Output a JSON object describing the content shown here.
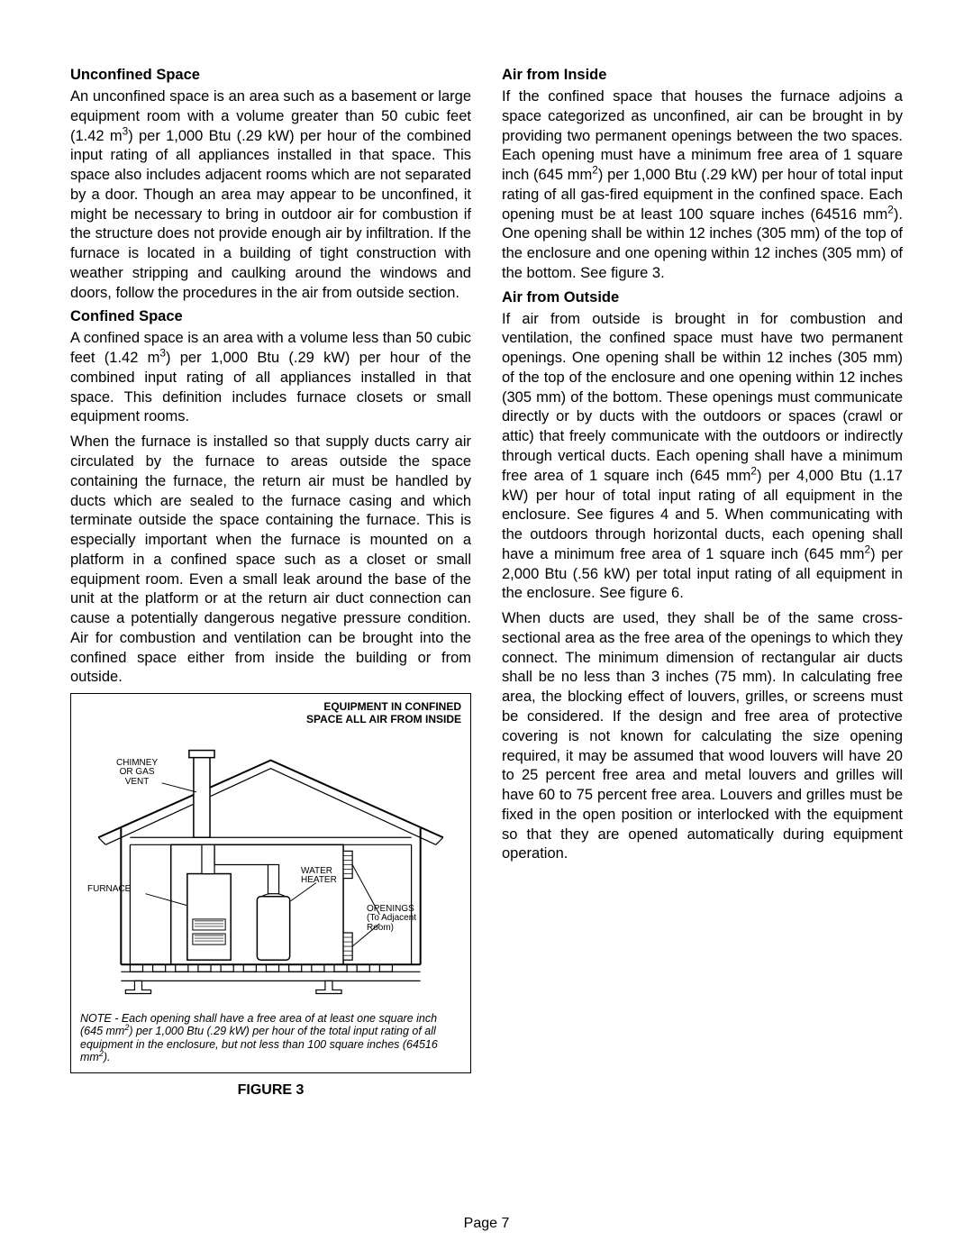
{
  "page_number": "Page 7",
  "left": {
    "h1": "Unconfined Space",
    "p1": "An unconfined space is an area such as a basement or large equipment room with a volume greater than 50 cubic feet (1.42 m³) per 1,000 Btu (.29 kW) per hour of the combined input rating of all appliances installed in that space. This space also includes adjacent rooms which are not separated by a door. Though an area may appear to be unconfined, it might be necessary to bring in outdoor air for combustion if the structure does not provide enough air by infiltration. If the furnace is located in a building of tight construction with weather stripping and caulking around the windows and doors, follow the procedures in the air from outside section.",
    "h2": "Confined Space",
    "p2": "A confined space is an area with a volume less than 50 cubic feet (1.42 m³) per 1,000 Btu (.29 kW) per hour of the combined input rating of all appliances installed in that space. This definition includes furnace closets or small equipment rooms.",
    "p3": "When the furnace is installed so that supply ducts carry air circulated by the furnace to areas outside the space containing the furnace, the return air must be handled by ducts which are sealed to the furnace casing and which terminate outside the space containing the furnace. This is especially important when the furnace is mounted on a platform in a confined space such as a closet or small equipment room. Even a small leak around the base of the unit at the platform or at the return air duct connection can cause a potentially dangerous negative pressure condition. Air for combustion and ventilation can be brought into the confined space either from inside the building or from outside."
  },
  "right": {
    "h1": "Air from Inside",
    "p1": "If the confined space that houses the furnace adjoins a space categorized as unconfined, air can be brought in by providing two permanent openings between the two spaces. Each opening must have a minimum free area of 1 square inch (645 mm²) per 1,000 Btu (.29 kW) per hour of total input rating of all gas-fired equipment in the confined space. Each opening must be at least 100 square inches (64516 mm²). One opening shall be within 12 inches (305 mm) of the top of the enclosure and one opening within 12 inches (305 mm) of the bottom. See figure 3.",
    "h2": "Air from Outside",
    "p2": "If air from outside is brought in for combustion and ventilation, the confined space must have two permanent openings. One opening shall be within 12 inches (305 mm) of the top of the enclosure and one opening within 12 inches (305 mm) of the bottom. These openings must communicate directly or by ducts with the outdoors or spaces (crawl or attic) that freely communicate with the outdoors or indirectly through vertical ducts. Each opening shall have a minimum free area of 1 square inch (645 mm²) per 4,000 Btu (1.17 kW) per hour of total input rating of all equipment in the enclosure. See figures 4 and 5. When communicating with the outdoors through horizontal ducts, each opening shall have a minimum free area of 1 square inch (645 mm²) per 2,000 Btu (.56 kW) per total input rating of all equipment in the enclosure. See figure 6.",
    "p3": "When ducts are used, they shall be of the same cross-sectional area as the free area of the openings to which they connect. The minimum dimension of rectangular air ducts shall be no less than 3 inches (75 mm). In calculating free area, the blocking effect of louvers, grilles, or screens must be considered. If the design and free area of protective covering is not known for calculating the size opening required, it may be assumed that wood louvers will have 20 to 25 percent free area and metal louvers and grilles will have 60 to 75 percent free area. Louvers and grilles must be fixed in the open position or interlocked with the equipment so that they are opened automatically during equipment operation."
  },
  "figure": {
    "title_l1": "EQUIPMENT IN CONFINED",
    "title_l2": "SPACE ALL AIR FROM INSIDE",
    "label_chimney": "CHIMNEY\nOR GAS\nVENT",
    "label_furnace": "FURNACE",
    "label_water": "WATER\nHEATER",
    "label_openings": "OPENINGS\n(To Adjacent\nRoom)",
    "note": "NOTE - Each opening shall have a free area of at least one square inch (645 mm²) per 1,000 Btu (.29 kW) per hour of the total input rating of all equipment in the enclosure, but not less than 100 square inches (64516 mm²).",
    "caption": "FIGURE 3",
    "colors": {
      "line": "#000000",
      "fill_roof": "#ffffff",
      "fill_bg": "#ffffff"
    },
    "stroke_width": 1.5
  }
}
